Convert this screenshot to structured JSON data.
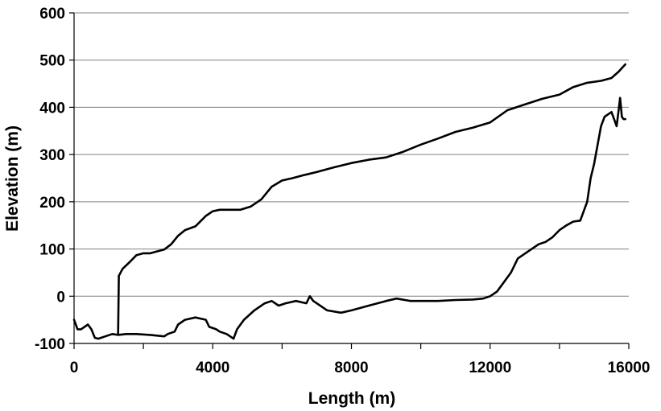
{
  "chart_data": {
    "type": "line",
    "title": "",
    "xlabel": "Length (m)",
    "ylabel": "Elevation (m)",
    "xlim": [
      0,
      16000
    ],
    "ylim": [
      -100,
      600
    ],
    "x_ticks": [
      0,
      4000,
      8000,
      12000,
      16000
    ],
    "x_tick_labels": [
      "0",
      "4000",
      "8000",
      "12000",
      "16000"
    ],
    "x_minor_ticks": [
      2000,
      6000,
      10000,
      14000
    ],
    "y_ticks": [
      -100,
      0,
      100,
      200,
      300,
      400,
      500,
      600
    ],
    "y_tick_labels": [
      "-100",
      "0",
      "100",
      "200",
      "300",
      "400",
      "500",
      "600"
    ],
    "grid": "horizontal",
    "legend": "none",
    "line_color": "#000000",
    "series": [
      {
        "x": [
          1270,
          1290,
          1400,
          1600,
          1800,
          2000,
          2200,
          2400,
          2600,
          2800,
          3000,
          3200,
          3500,
          3800,
          4000,
          4200,
          4500,
          4800,
          5100,
          5400,
          5700,
          6000,
          6300,
          6600,
          7000,
          7500,
          8000,
          8500,
          9000,
          9500,
          10000,
          10500,
          11000,
          11500,
          12000,
          12500,
          13000,
          13500,
          14000,
          14400,
          14800,
          15200,
          15500,
          15700,
          15900
        ],
        "values": [
          -80,
          43,
          58,
          72,
          87,
          91,
          91,
          95,
          99,
          110,
          128,
          140,
          148,
          170,
          180,
          183,
          183,
          183,
          190,
          205,
          232,
          245,
          250,
          256,
          263,
          273,
          282,
          289,
          294,
          306,
          321,
          334,
          348,
          357,
          368,
          394,
          406,
          418,
          427,
          443,
          452,
          456,
          462,
          475,
          491
        ]
      },
      {
        "x": [
          0,
          100,
          200,
          400,
          500,
          600,
          700,
          900,
          1100,
          1270,
          1500,
          1800,
          2200,
          2600,
          2700,
          2900,
          3000,
          3200,
          3500,
          3800,
          3900,
          4100,
          4200,
          4400,
          4600,
          4700,
          4900,
          5200,
          5500,
          5700,
          5900,
          6100,
          6400,
          6700,
          6800,
          6900,
          7000,
          7300,
          7700,
          8000,
          8500,
          9000,
          9300,
          9700,
          10000,
          10500,
          11000,
          11500,
          11800,
          12000,
          12200,
          12400,
          12600,
          12800,
          13000,
          13200,
          13400,
          13600,
          13800,
          14000,
          14200,
          14400,
          14600,
          14800,
          14900,
          15000,
          15100,
          15200,
          15300,
          15400,
          15500,
          15600,
          15650,
          15700,
          15750,
          15800,
          15850,
          15900
        ],
        "values": [
          -50,
          -70,
          -70,
          -60,
          -70,
          -88,
          -90,
          -85,
          -80,
          -82,
          -80,
          -80,
          -82,
          -85,
          -80,
          -75,
          -60,
          -50,
          -45,
          -50,
          -65,
          -70,
          -75,
          -80,
          -90,
          -70,
          -50,
          -30,
          -15,
          -10,
          -20,
          -15,
          -10,
          -15,
          0,
          -10,
          -15,
          -30,
          -35,
          -30,
          -20,
          -10,
          -5,
          -10,
          -10,
          -10,
          -8,
          -7,
          -5,
          0,
          10,
          30,
          50,
          80,
          90,
          100,
          110,
          115,
          125,
          140,
          150,
          158,
          160,
          200,
          250,
          280,
          320,
          360,
          380,
          385,
          390,
          370,
          360,
          390,
          420,
          380,
          375,
          375
        ]
      }
    ]
  }
}
